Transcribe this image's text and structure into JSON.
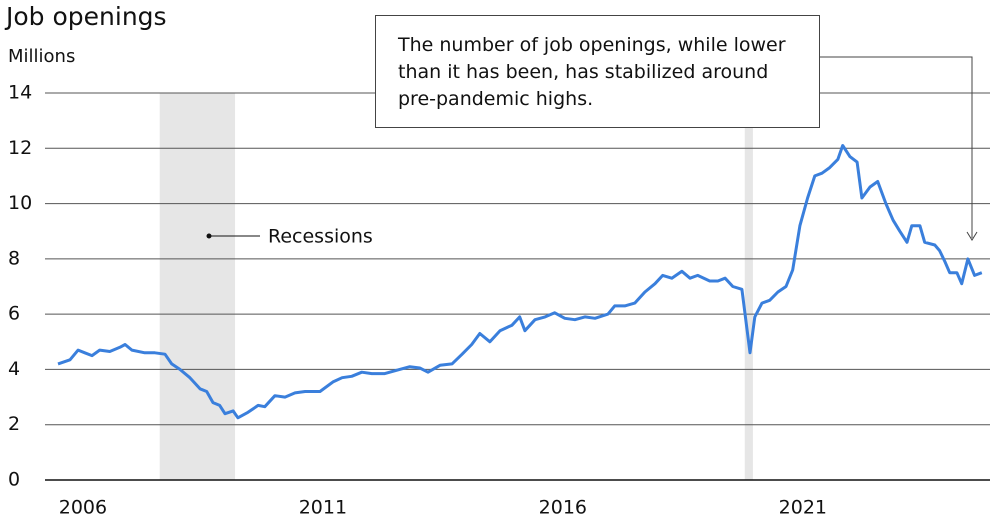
{
  "chart_data": {
    "type": "line",
    "title": "Job openings",
    "y_label": "Millions",
    "annotation": "The number of job openings, while lower than it has been, has stabilized around pre-pandemic highs.",
    "recession_label": "Recessions",
    "recessions": [
      [
        2007.6,
        2009.17
      ],
      [
        2019.79,
        2019.96
      ]
    ],
    "xlim": [
      2005.21,
      2024.9
    ],
    "xticks": [
      2006,
      2011,
      2016,
      2021
    ],
    "ylim": [
      0,
      14
    ],
    "yticks": [
      0,
      2,
      4,
      6,
      8,
      10,
      12,
      14
    ],
    "grid": true,
    "series": [
      {
        "color": "#3a7fdc",
        "x": [
          2005.48,
          2005.73,
          2005.9,
          2006.04,
          2006.19,
          2006.35,
          2006.56,
          2006.77,
          2006.88,
          2007.02,
          2007.29,
          2007.5,
          2007.71,
          2007.85,
          2008.02,
          2008.23,
          2008.44,
          2008.58,
          2008.71,
          2008.85,
          2008.96,
          2009.13,
          2009.23,
          2009.44,
          2009.65,
          2009.79,
          2010.0,
          2010.21,
          2010.42,
          2010.63,
          2010.94,
          2011.21,
          2011.4,
          2011.6,
          2011.81,
          2012.02,
          2012.29,
          2012.6,
          2012.81,
          2013.02,
          2013.19,
          2013.44,
          2013.69,
          2013.9,
          2014.1,
          2014.27,
          2014.48,
          2014.69,
          2014.94,
          2015.1,
          2015.21,
          2015.42,
          2015.63,
          2015.83,
          2016.04,
          2016.25,
          2016.46,
          2016.67,
          2016.94,
          2017.08,
          2017.29,
          2017.5,
          2017.71,
          2017.92,
          2018.08,
          2018.27,
          2018.48,
          2018.65,
          2018.81,
          2019.06,
          2019.23,
          2019.38,
          2019.54,
          2019.73,
          2019.9,
          2020.0,
          2020.15,
          2020.31,
          2020.48,
          2020.65,
          2020.79,
          2020.94,
          2021.1,
          2021.25,
          2021.4,
          2021.56,
          2021.73,
          2021.83,
          2021.98,
          2022.13,
          2022.23,
          2022.4,
          2022.56,
          2022.73,
          2022.88,
          2023.02,
          2023.17,
          2023.27,
          2023.44,
          2023.54,
          2023.75,
          2023.85,
          2023.96,
          2024.06,
          2024.21,
          2024.31,
          2024.44,
          2024.58,
          2024.73
        ],
        "values": [
          4.2,
          4.35,
          4.7,
          4.6,
          4.5,
          4.7,
          4.65,
          4.8,
          4.9,
          4.7,
          4.6,
          4.6,
          4.55,
          4.2,
          4.0,
          3.7,
          3.3,
          3.2,
          2.8,
          2.7,
          2.4,
          2.5,
          2.25,
          2.45,
          2.7,
          2.65,
          3.05,
          3.0,
          3.15,
          3.2,
          3.2,
          3.55,
          3.7,
          3.75,
          3.9,
          3.85,
          3.85,
          4.0,
          4.1,
          4.05,
          3.9,
          4.15,
          4.2,
          4.55,
          4.9,
          5.3,
          5.0,
          5.4,
          5.6,
          5.9,
          5.4,
          5.8,
          5.9,
          6.05,
          5.85,
          5.8,
          5.9,
          5.85,
          6.0,
          6.3,
          6.3,
          6.4,
          6.8,
          7.1,
          7.4,
          7.3,
          7.55,
          7.3,
          7.4,
          7.2,
          7.2,
          7.3,
          7.0,
          6.9,
          4.6,
          5.9,
          6.4,
          6.5,
          6.8,
          7.0,
          7.6,
          9.2,
          10.2,
          11.0,
          11.1,
          11.3,
          11.6,
          12.1,
          11.7,
          11.5,
          10.2,
          10.6,
          10.8,
          10.0,
          9.4,
          9.0,
          8.6,
          9.2,
          9.2,
          8.6,
          8.5,
          8.3,
          7.9,
          7.5,
          7.5,
          7.1,
          8.0,
          7.4,
          7.5
        ]
      }
    ]
  }
}
